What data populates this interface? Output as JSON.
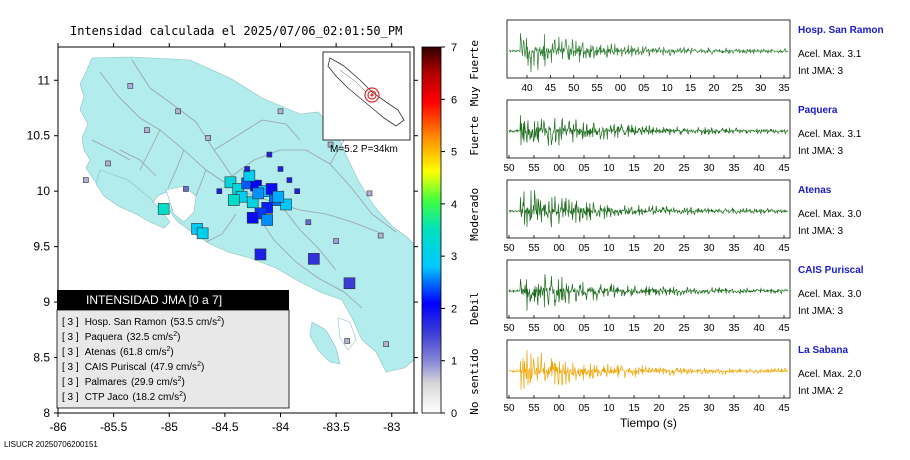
{
  "map": {
    "title": "Intensidad calculada el 2025/07/06_02:01:50_PM",
    "x_ticks": [
      "-86",
      "-85.5",
      "-85",
      "-84.5",
      "-84",
      "-83.5",
      "-83"
    ],
    "y_ticks": [
      "11",
      "10.5",
      "10",
      "9.5",
      "9",
      "8.5",
      "8"
    ],
    "xlim": [
      -86,
      -82.8
    ],
    "ylim": [
      8,
      11.3
    ],
    "inset_label": "M=5.2 P=34km",
    "footer": "LISUCR 20250706200151",
    "colors": {
      "land": "#b2ecec",
      "sea": "#ffffff",
      "roads": "#9aa0a8",
      "epicenter": "#e03030"
    }
  },
  "legend": {
    "title": "INTENSIDAD JMA [0 a 7]",
    "stations": [
      {
        "level": "[ 3 ]",
        "name": "Hosp. San Ramon",
        "value": "(53.5 cm/s",
        "sup": "2",
        "close": ")"
      },
      {
        "level": "[ 3 ]",
        "name": "Paquera",
        "value": "(32.5 cm/s",
        "sup": "2",
        "close": ")"
      },
      {
        "level": "[ 3 ]",
        "name": "Atenas",
        "value": "(61.8 cm/s",
        "sup": "2",
        "close": ")"
      },
      {
        "level": "[ 3 ]",
        "name": "CAIS Puriscal",
        "value": "(47.9 cm/s",
        "sup": "2",
        "close": ")"
      },
      {
        "level": "[ 3 ]",
        "name": "Palmares",
        "value": "(29.9 cm/s",
        "sup": "2",
        "close": ")"
      },
      {
        "level": "[ 3 ]",
        "name": "CTP Jaco",
        "value": "(18.2 cm/s",
        "sup": "2",
        "close": ")"
      }
    ]
  },
  "colorbar": {
    "ticks": [
      "0",
      "1",
      "2",
      "3",
      "4",
      "5",
      "6",
      "7"
    ],
    "labels": [
      "No sentido",
      "Debil",
      "Moderado",
      "Fuerte",
      "Muy Fuerte"
    ],
    "range": [
      0,
      7
    ]
  },
  "chart_data": {
    "type": "scatter",
    "title": "Intensidad calculada el 2025/07/06_02:01:50_PM",
    "xlabel": "",
    "ylabel": "",
    "xlim": [
      -86,
      -82.8
    ],
    "ylim": [
      8,
      11.3
    ],
    "color_scale": "JMA intensity 0-7",
    "points": [
      {
        "lon": -84.45,
        "lat": 10.08,
        "intensity": 3.2,
        "size": "large"
      },
      {
        "lon": -84.38,
        "lat": 10.02,
        "intensity": 3.2,
        "size": "large"
      },
      {
        "lon": -84.3,
        "lat": 10.07,
        "intensity": 2.4,
        "size": "large"
      },
      {
        "lon": -84.22,
        "lat": 10.05,
        "intensity": 2.1,
        "size": "large"
      },
      {
        "lon": -84.15,
        "lat": 10.0,
        "intensity": 2.8,
        "size": "large"
      },
      {
        "lon": -84.08,
        "lat": 10.02,
        "intensity": 2.0,
        "size": "large"
      },
      {
        "lon": -84.05,
        "lat": 9.92,
        "intensity": 2.5,
        "size": "large"
      },
      {
        "lon": -83.95,
        "lat": 9.88,
        "intensity": 2.8,
        "size": "large"
      },
      {
        "lon": -84.12,
        "lat": 9.85,
        "intensity": 2.2,
        "size": "large"
      },
      {
        "lon": -84.25,
        "lat": 9.9,
        "intensity": 3.1,
        "size": "large"
      },
      {
        "lon": -84.35,
        "lat": 9.95,
        "intensity": 3.0,
        "size": "large"
      },
      {
        "lon": -84.42,
        "lat": 9.92,
        "intensity": 3.4,
        "size": "large"
      },
      {
        "lon": -84.2,
        "lat": 9.98,
        "intensity": 2.6,
        "size": "large"
      },
      {
        "lon": -84.18,
        "lat": 9.8,
        "intensity": 2.3,
        "size": "large"
      },
      {
        "lon": -84.28,
        "lat": 10.14,
        "intensity": 2.9,
        "size": "large"
      },
      {
        "lon": -84.02,
        "lat": 9.95,
        "intensity": 2.7,
        "size": "large"
      },
      {
        "lon": -84.25,
        "lat": 9.76,
        "intensity": 2.0,
        "size": "large"
      },
      {
        "lon": -84.12,
        "lat": 9.74,
        "intensity": 2.6,
        "size": "large"
      },
      {
        "lon": -85.05,
        "lat": 9.84,
        "intensity": 3.4,
        "size": "large"
      },
      {
        "lon": -84.75,
        "lat": 9.66,
        "intensity": 2.9,
        "size": "large"
      },
      {
        "lon": -84.7,
        "lat": 9.62,
        "intensity": 3.0,
        "size": "large"
      },
      {
        "lon": -84.18,
        "lat": 9.43,
        "intensity": 1.8,
        "size": "large"
      },
      {
        "lon": -83.7,
        "lat": 9.39,
        "intensity": 1.6,
        "size": "large"
      },
      {
        "lon": -83.38,
        "lat": 9.17,
        "intensity": 1.5,
        "size": "large"
      },
      {
        "lon": -84.55,
        "lat": 10.0,
        "intensity": 1.8,
        "size": "small"
      },
      {
        "lon": -84.0,
        "lat": 10.2,
        "intensity": 1.8,
        "size": "small"
      },
      {
        "lon": -83.92,
        "lat": 10.1,
        "intensity": 1.8,
        "size": "small"
      },
      {
        "lon": -84.1,
        "lat": 10.33,
        "intensity": 1.8,
        "size": "small"
      },
      {
        "lon": -84.3,
        "lat": 10.2,
        "intensity": 1.8,
        "size": "small"
      },
      {
        "lon": -83.85,
        "lat": 10.0,
        "intensity": 1.8,
        "size": "small"
      },
      {
        "lon": -85.35,
        "lat": 10.95,
        "intensity": 0.8,
        "size": "small"
      },
      {
        "lon": -84.92,
        "lat": 10.72,
        "intensity": 0.8,
        "size": "small"
      },
      {
        "lon": -85.55,
        "lat": 10.25,
        "intensity": 0.8,
        "size": "small"
      },
      {
        "lon": -84.65,
        "lat": 10.48,
        "intensity": 0.8,
        "size": "small"
      },
      {
        "lon": -83.55,
        "lat": 10.42,
        "intensity": 0.8,
        "size": "small"
      },
      {
        "lon": -83.2,
        "lat": 9.98,
        "intensity": 0.8,
        "size": "small"
      },
      {
        "lon": -83.1,
        "lat": 9.6,
        "intensity": 0.8,
        "size": "small"
      },
      {
        "lon": -83.4,
        "lat": 8.65,
        "intensity": 0.8,
        "size": "small"
      },
      {
        "lon": -83.05,
        "lat": 8.62,
        "intensity": 0.8,
        "size": "small"
      },
      {
        "lon": -84.0,
        "lat": 10.72,
        "intensity": 0.8,
        "size": "small"
      },
      {
        "lon": -85.75,
        "lat": 10.1,
        "intensity": 0.8,
        "size": "small"
      },
      {
        "lon": -84.85,
        "lat": 10.02,
        "intensity": 1.2,
        "size": "small"
      },
      {
        "lon": -83.75,
        "lat": 9.72,
        "intensity": 1.2,
        "size": "small"
      },
      {
        "lon": -83.5,
        "lat": 9.55,
        "intensity": 0.9,
        "size": "small"
      },
      {
        "lon": -85.2,
        "lat": 10.55,
        "intensity": 0.8,
        "size": "small"
      }
    ]
  },
  "waveforms": {
    "xlabel": "Tiempo (s)",
    "panels": [
      {
        "name": "Hosp. San Ramon",
        "acel": "Acel. Max. 3.1",
        "jma": "Int JMA: 3",
        "color": "#2e7d32",
        "ticks": [
          "40",
          "45",
          "50",
          "55",
          "00",
          "05",
          "10",
          "15",
          "20",
          "25",
          "30",
          "35"
        ]
      },
      {
        "name": "Paquera",
        "acel": "Acel. Max. 3.1",
        "jma": "Int JMA: 3",
        "color": "#1b6b1b",
        "ticks": [
          "50",
          "55",
          "00",
          "05",
          "10",
          "15",
          "20",
          "25",
          "30",
          "35",
          "40",
          "45"
        ]
      },
      {
        "name": "Atenas",
        "acel": "Acel. Max. 3.0",
        "jma": "Int JMA: 3",
        "color": "#1b6b1b",
        "ticks": [
          "50",
          "55",
          "00",
          "05",
          "10",
          "15",
          "20",
          "25",
          "30",
          "35",
          "40",
          "45"
        ]
      },
      {
        "name": "CAIS Puriscal",
        "acel": "Acel. Max. 3.0",
        "jma": "Int JMA: 3",
        "color": "#1b6b1b",
        "ticks": [
          "50",
          "55",
          "00",
          "05",
          "10",
          "15",
          "20",
          "25",
          "30",
          "35",
          "40",
          "45"
        ]
      },
      {
        "name": "La Sabana",
        "acel": "Acel. Max. 2.0",
        "jma": "Int JMA: 2",
        "color": "#f4a300",
        "ticks": [
          "50",
          "55",
          "00",
          "05",
          "10",
          "15",
          "20",
          "25",
          "30",
          "35",
          "40",
          "45"
        ]
      }
    ]
  }
}
